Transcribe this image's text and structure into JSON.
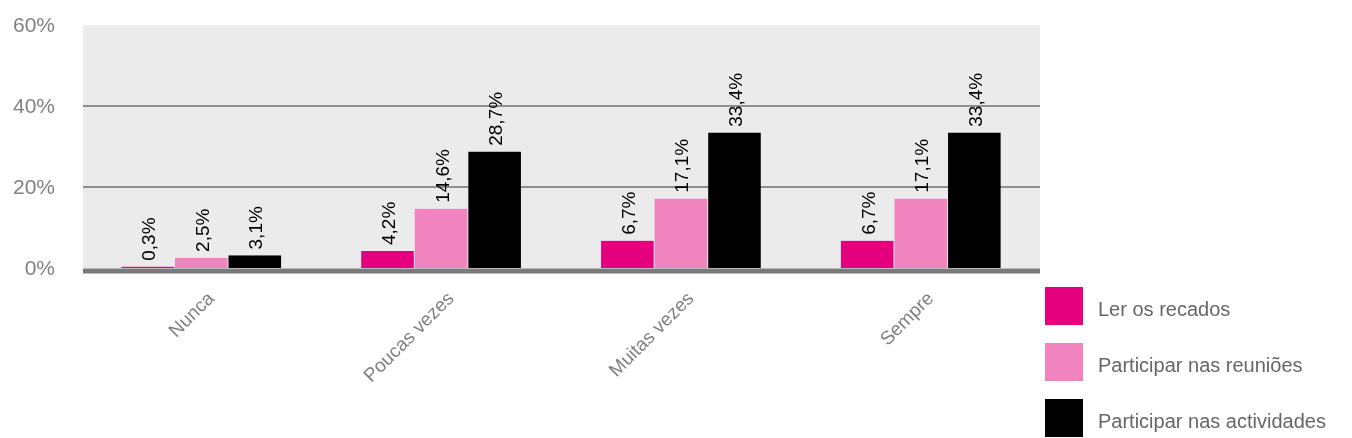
{
  "chart_data": {
    "type": "bar",
    "categories": [
      "Nunca",
      "Poucas vezes",
      "Muitas vezes",
      "Sempre"
    ],
    "series": [
      {
        "name": "Ler os recados",
        "color": "#e5007d",
        "values": [
          0.3,
          4.2,
          6.7,
          6.7
        ]
      },
      {
        "name": "Participar nas reuniões",
        "color": "#f184bf",
        "values": [
          2.5,
          14.6,
          17.1,
          17.1
        ]
      },
      {
        "name": "Participar nas actividades",
        "color": "#000000",
        "values": [
          3.1,
          28.7,
          33.4,
          33.4
        ]
      }
    ],
    "ylim": [
      0,
      60
    ],
    "yticks": [
      {
        "value": 0,
        "label": "0%"
      },
      {
        "value": 20,
        "label": "20%"
      },
      {
        "value": 40,
        "label": "40%"
      },
      {
        "value": 60,
        "label": "60%"
      }
    ],
    "grid": "y",
    "legend": "bottom right",
    "value_labels": [
      [
        "0,3%",
        "4,2%",
        "6,7%",
        "6,7%"
      ],
      [
        "2,5%",
        "14,6%",
        "17,1%",
        "17,1%"
      ],
      [
        "3,1%",
        "28,7%",
        "33,4%",
        "33,4%"
      ]
    ]
  }
}
